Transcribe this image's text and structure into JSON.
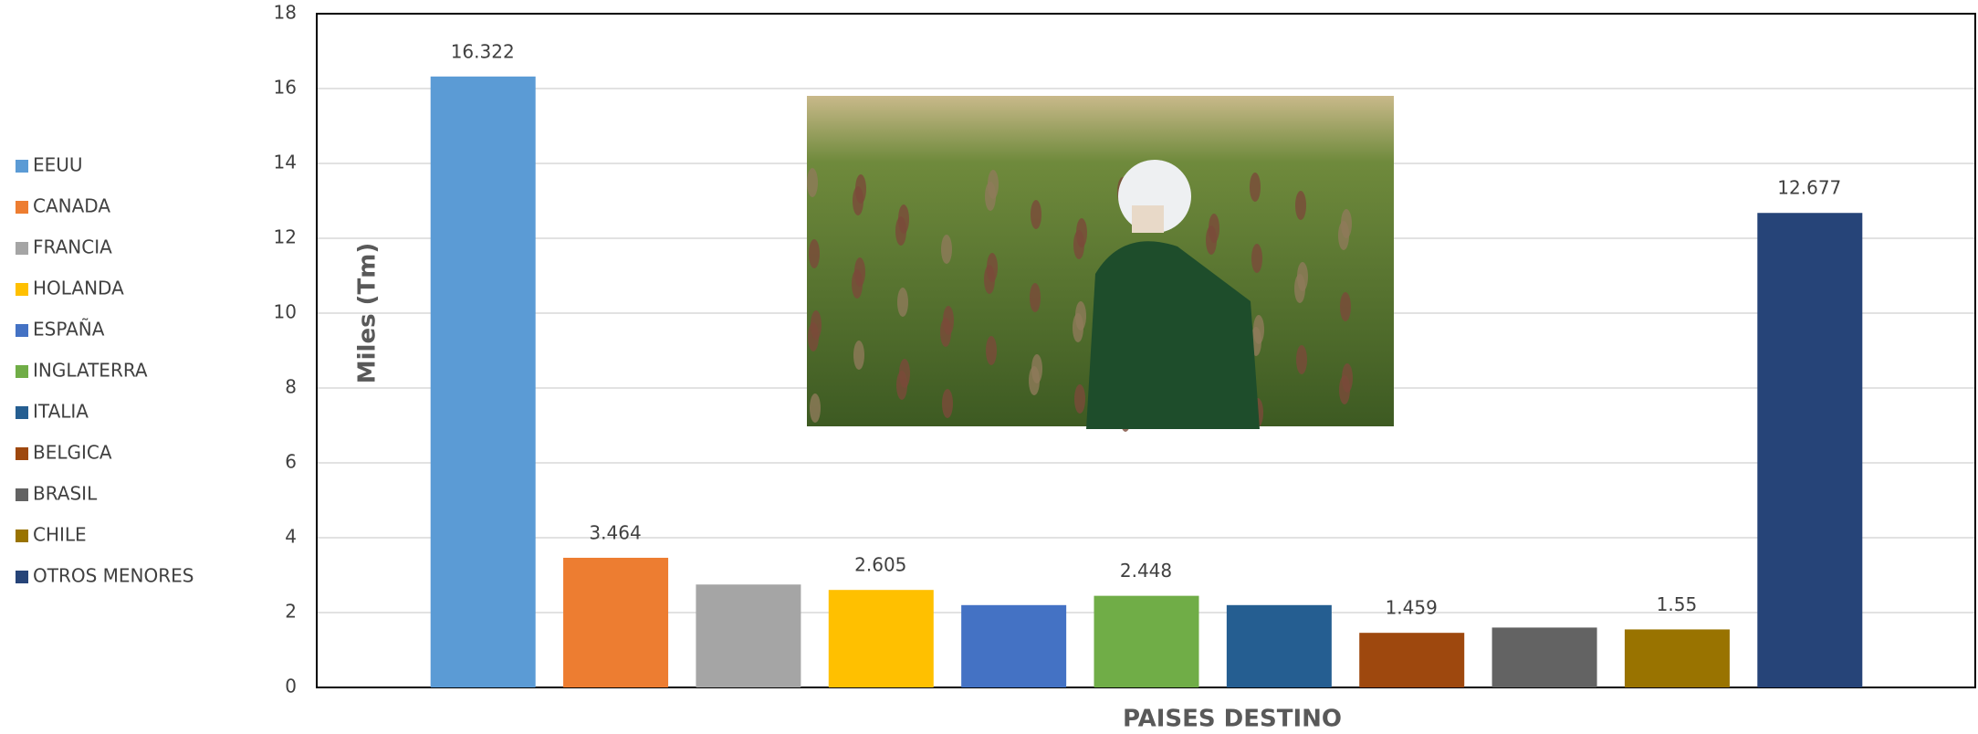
{
  "chart_data": {
    "type": "bar",
    "x_label": "PAISES DESTINO",
    "y_label": "Miles (Tm)",
    "categories": [
      "EEUU",
      "CANADA",
      "FRANCIA",
      "HOLANDA",
      "ESPAÑA",
      "INGLATERRA",
      "ITALIA",
      "BELGICA",
      "BRASIL",
      "CHILE",
      "OTROS MENORES"
    ],
    "values": [
      16.322,
      3.464,
      2.75,
      2.605,
      2.2,
      2.448,
      2.2,
      1.459,
      1.6,
      1.55,
      12.677
    ],
    "value_labels": [
      "16.322",
      "3.464",
      null,
      "2.605",
      null,
      "2.448",
      null,
      "1.459",
      null,
      "1.55",
      "12.677"
    ],
    "colors": [
      "#5b9bd5",
      "#ed7d31",
      "#a5a5a5",
      "#ffc000",
      "#4472c4",
      "#70ad47",
      "#255e91",
      "#9e480e",
      "#636363",
      "#997300",
      "#264478"
    ],
    "ylim": [
      0,
      18
    ],
    "yticks": [
      0,
      2,
      4,
      6,
      8,
      10,
      12,
      14,
      16,
      18
    ],
    "grid": true,
    "legend": "left"
  }
}
